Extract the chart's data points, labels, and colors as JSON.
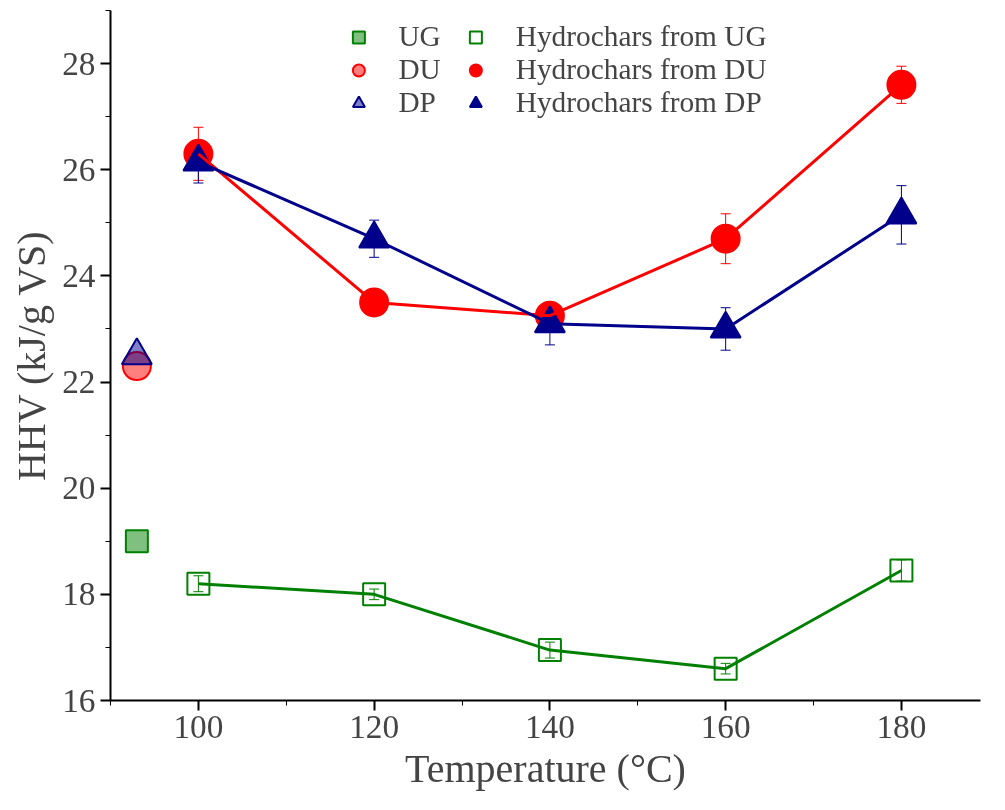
{
  "chart_data": {
    "type": "line",
    "xlabel": "Temperature (°C)",
    "ylabel": "HHV (kJ/g VS)",
    "xlim": [
      90,
      189
    ],
    "ylim": [
      16,
      29
    ],
    "xticks": [
      100,
      120,
      140,
      160,
      180
    ],
    "yticks": [
      16,
      18,
      20,
      22,
      24,
      26,
      28
    ],
    "grid": false,
    "legend": "top",
    "line_style": "solid",
    "series": [
      {
        "name": "UG",
        "type": "scatter",
        "marker": "square",
        "color": "#008000",
        "x": [
          93
        ],
        "values": [
          19.0
        ],
        "errors": [
          null
        ]
      },
      {
        "name": "DU",
        "type": "scatter",
        "marker": "circle",
        "color": "#ff0000",
        "x": [
          93
        ],
        "values": [
          22.3
        ],
        "errors": [
          null
        ]
      },
      {
        "name": "DP",
        "type": "scatter",
        "marker": "triangle",
        "color": "#00008b",
        "x": [
          93
        ],
        "values": [
          22.5
        ],
        "errors": [
          null
        ]
      },
      {
        "name": "Hydrochars from UG",
        "marker": "square",
        "color": "#008000",
        "x": [
          100,
          120,
          140,
          160,
          180
        ],
        "values": [
          18.2,
          18.0,
          16.95,
          16.6,
          18.45
        ],
        "errors": [
          0.15,
          0.1,
          0.15,
          0.1,
          0.2
        ]
      },
      {
        "name": "Hydrochars from DU",
        "marker": "circle",
        "color": "#ff0000",
        "x": [
          100,
          120,
          140,
          160,
          180
        ],
        "values": [
          26.3,
          23.5,
          23.25,
          24.7,
          27.6
        ],
        "errors": [
          0.5,
          0.1,
          0.2,
          0.47,
          0.35
        ]
      },
      {
        "name": "Hydrochars from DP",
        "marker": "triangle",
        "color": "#00008b",
        "x": [
          100,
          120,
          140,
          160,
          180
        ],
        "values": [
          26.15,
          24.7,
          23.1,
          23.0,
          25.15
        ],
        "errors": [
          0.4,
          0.35,
          0.4,
          0.4,
          0.55
        ]
      }
    ]
  }
}
